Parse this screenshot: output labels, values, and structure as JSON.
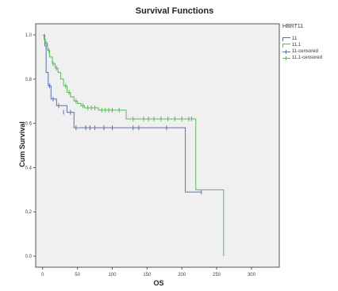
{
  "chart_data": {
    "type": "line",
    "title": "Survival Functions",
    "xlabel": "OS",
    "ylabel": "Cum Survival",
    "xlim": [
      -10,
      340
    ],
    "ylim": [
      -0.05,
      1.05
    ],
    "x_ticks": [
      "0",
      "50",
      "100",
      "150",
      "200",
      "250",
      "300"
    ],
    "y_ticks": [
      "0.0",
      "0.2",
      "0.4",
      "0.6",
      "0.8",
      "1.0"
    ],
    "grid": false,
    "plot_background": "#f0f0f0",
    "legend": {
      "title": "HBRT11",
      "position": "right",
      "entries": [
        "11",
        "11.1",
        "11-censored",
        "11.1-censored"
      ]
    },
    "series": [
      {
        "name": "11",
        "color": "#5b6fb5",
        "steps": [
          [
            0,
            1.0
          ],
          [
            3,
            0.95
          ],
          [
            5,
            0.83
          ],
          [
            8,
            0.77
          ],
          [
            12,
            0.71
          ],
          [
            20,
            0.68
          ],
          [
            35,
            0.65
          ],
          [
            45,
            0.58
          ],
          [
            205,
            0.58
          ],
          [
            205,
            0.29
          ],
          [
            228,
            0.29
          ]
        ],
        "censored": [
          [
            10,
            0.77
          ],
          [
            15,
            0.71
          ],
          [
            23,
            0.68
          ],
          [
            30,
            0.65
          ],
          [
            40,
            0.65
          ],
          [
            48,
            0.58
          ],
          [
            62,
            0.58
          ],
          [
            68,
            0.58
          ],
          [
            75,
            0.58
          ],
          [
            88,
            0.58
          ],
          [
            100,
            0.58
          ],
          [
            130,
            0.58
          ],
          [
            138,
            0.58
          ],
          [
            178,
            0.58
          ],
          [
            228,
            0.29
          ]
        ]
      },
      {
        "name": "11.1",
        "color": "#5cb85c",
        "steps": [
          [
            0,
            1.0
          ],
          [
            2,
            0.98
          ],
          [
            4,
            0.96
          ],
          [
            7,
            0.93
          ],
          [
            10,
            0.9
          ],
          [
            14,
            0.87
          ],
          [
            18,
            0.85
          ],
          [
            22,
            0.83
          ],
          [
            26,
            0.8
          ],
          [
            30,
            0.77
          ],
          [
            35,
            0.74
          ],
          [
            40,
            0.72
          ],
          [
            45,
            0.7
          ],
          [
            50,
            0.69
          ],
          [
            55,
            0.68
          ],
          [
            60,
            0.67
          ],
          [
            80,
            0.66
          ],
          [
            120,
            0.62
          ],
          [
            220,
            0.62
          ],
          [
            220,
            0.3
          ],
          [
            260,
            0.3
          ],
          [
            260,
            0.0
          ]
        ],
        "censored": [
          [
            3,
            0.98
          ],
          [
            6,
            0.96
          ],
          [
            9,
            0.93
          ],
          [
            15,
            0.87
          ],
          [
            20,
            0.85
          ],
          [
            33,
            0.77
          ],
          [
            38,
            0.74
          ],
          [
            48,
            0.7
          ],
          [
            58,
            0.68
          ],
          [
            65,
            0.67
          ],
          [
            70,
            0.67
          ],
          [
            75,
            0.67
          ],
          [
            85,
            0.66
          ],
          [
            90,
            0.66
          ],
          [
            95,
            0.66
          ],
          [
            100,
            0.66
          ],
          [
            110,
            0.66
          ],
          [
            130,
            0.62
          ],
          [
            145,
            0.62
          ],
          [
            152,
            0.62
          ],
          [
            160,
            0.62
          ],
          [
            170,
            0.62
          ],
          [
            180,
            0.62
          ],
          [
            190,
            0.62
          ],
          [
            200,
            0.62
          ],
          [
            210,
            0.62
          ],
          [
            214,
            0.62
          ]
        ]
      }
    ]
  }
}
